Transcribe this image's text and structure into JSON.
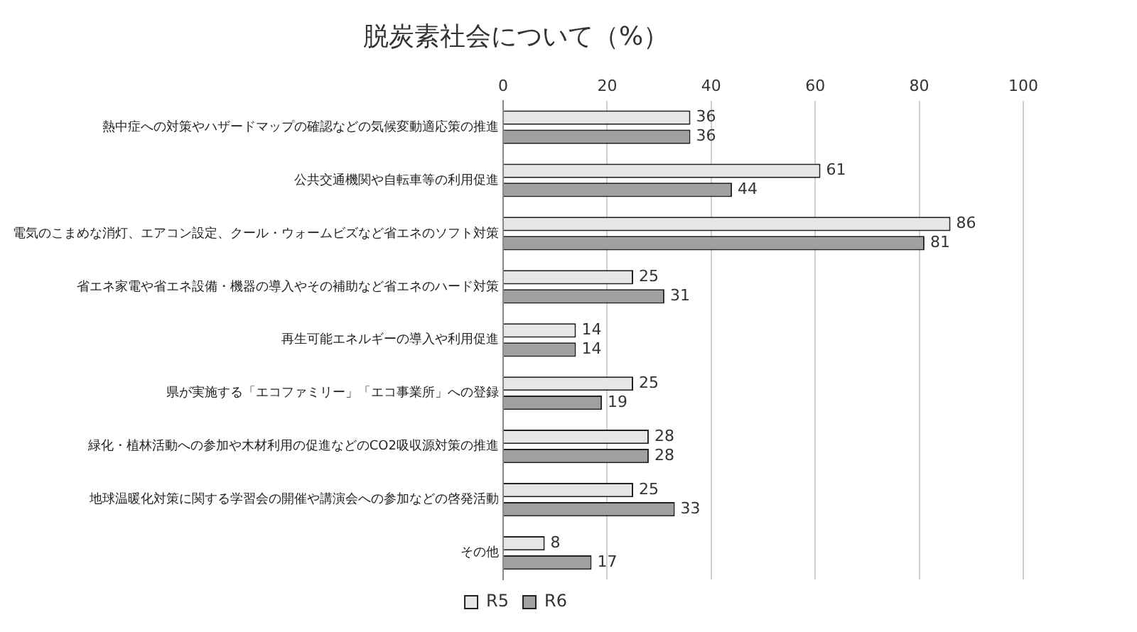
{
  "chart_data": {
    "type": "bar",
    "orientation": "horizontal",
    "title": "脱炭素社会について（%）",
    "categories": [
      "熱中症への対策やハザードマップの確認などの気候変動適応策の推進",
      "公共交通機関や自転車等の利用促進",
      "電気のこまめな消灯、エアコン設定、クール・ウォームビズなど省エネのソフト対策",
      "省エネ家電や省エネ設備・機器の導入やその補助など省エネのハード対策",
      "再生可能エネルギーの導入や利用促進",
      "県が実施する「エコファミリー」「エコ事業所」への登録",
      "緑化・植林活動への参加や木材利用の促進などのCO2吸収源対策の推進",
      "地球温暖化対策に関する学習会の開催や講演会への参加などの啓発活動",
      "その他"
    ],
    "series": [
      {
        "name": "R5",
        "color": "#e6e6e6",
        "values": [
          36,
          61,
          86,
          25,
          14,
          25,
          28,
          25,
          8
        ]
      },
      {
        "name": "R6",
        "color": "#a0a0a0",
        "values": [
          36,
          44,
          81,
          31,
          14,
          19,
          28,
          33,
          17
        ]
      }
    ],
    "xlim": [
      0,
      100
    ],
    "xticks": [
      0,
      20,
      40,
      60,
      80,
      100
    ],
    "grid": "x",
    "legend": "bottom",
    "data_labels": true
  }
}
